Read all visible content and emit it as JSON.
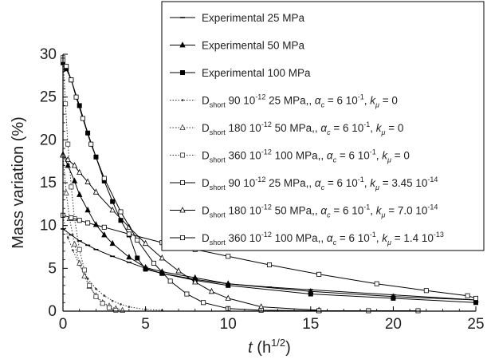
{
  "chart_data": {
    "type": "line",
    "xlabel": "t",
    "xlabel_unit": "(h",
    "xlabel_exp": "1/2",
    "xlabel_close": ")",
    "ylabel": "Mass variation (%)",
    "xlim": [
      0,
      25
    ],
    "ylim": [
      0,
      30
    ],
    "xticks": [
      0,
      5,
      10,
      15,
      20,
      25
    ],
    "yticks": [
      0,
      5,
      10,
      15,
      20,
      25,
      30
    ],
    "grid": false,
    "legend_position": "top-right",
    "series": [
      {
        "name": "Experimental 25 MPa",
        "legend": {
          "pre": "Experimental 25 MPa",
          "sub": "",
          "mid": "",
          "sup": "",
          "tail": ""
        },
        "marker": "dash",
        "line": "solid",
        "color": "#000000",
        "x": [
          0,
          0.5,
          1.0,
          1.5,
          2,
          3,
          4,
          5,
          6,
          8,
          10,
          12.5,
          15,
          20,
          25
        ],
        "y": [
          9.6,
          8.9,
          8.2,
          7.7,
          7.2,
          6.4,
          5.7,
          5.0,
          4.4,
          3.7,
          3.2,
          2.8,
          2.5,
          1.9,
          1.3
        ]
      },
      {
        "name": "Experimental 50 MPa",
        "legend": {
          "pre": "Experimental 50 MPa",
          "sub": "",
          "mid": "",
          "sup": "",
          "tail": ""
        },
        "marker": "triangle-filled",
        "line": "solid",
        "color": "#000000",
        "x": [
          0,
          0.3,
          0.7,
          1,
          1.5,
          2,
          2.5,
          3,
          4,
          5,
          6,
          8,
          10,
          15,
          20,
          25
        ],
        "y": [
          18.3,
          17.0,
          15.2,
          13.6,
          11.8,
          10.1,
          8.9,
          7.9,
          6.3,
          5.1,
          4.6,
          3.9,
          3.2,
          2.3,
          1.7,
          1.3
        ]
      },
      {
        "name": "Experimental 100 MPa",
        "legend": {
          "pre": "Experimental 100 MPa",
          "sub": "",
          "mid": "",
          "sup": "",
          "tail": ""
        },
        "marker": "square-filled",
        "line": "solid",
        "color": "#000000",
        "x": [
          0,
          0.2,
          0.5,
          1,
          1.5,
          2,
          2.5,
          3,
          3.5,
          4,
          4.5,
          5,
          6,
          8,
          10,
          15,
          20,
          25
        ],
        "y": [
          29.0,
          28.3,
          27.0,
          24.0,
          20.8,
          18.0,
          15.2,
          12.8,
          10.6,
          8.9,
          6.2,
          4.9,
          4.4,
          3.6,
          3.0,
          2.0,
          1.5,
          1.0
        ]
      },
      {
        "name": "D short 90 10-12 25 MPa, ac = 6 10-1, kμ = 0",
        "legend": {
          "pre": "D",
          "sub": "short",
          "mid": " 90 10",
          "sup": "-12",
          "tail": "  25 MPa,"
        },
        "marker": "dot",
        "line": "dotted",
        "color": "#333333",
        "x": [
          0,
          0.3,
          0.6,
          1,
          1.5,
          2,
          2.5,
          3,
          3.5,
          4,
          5,
          6
        ],
        "y": [
          11.0,
          8.6,
          7.1,
          5.4,
          3.8,
          2.6,
          1.8,
          1.2,
          0.8,
          0.5,
          0.2,
          0.1
        ]
      },
      {
        "name": "D short 180 10-12 50 MPa, ac = 6 10-1, kμ = 0",
        "legend": {
          "pre": "D",
          "sub": "short",
          "mid": " 180 10",
          "sup": "-12",
          "tail": "  50 MPa,"
        },
        "marker": "triangle-open",
        "line": "dotted",
        "color": "#333333",
        "x": [
          0,
          0.2,
          0.4,
          0.7,
          1,
          1.3,
          1.6,
          2,
          2.4,
          2.8,
          3.2,
          3.6
        ],
        "y": [
          18.2,
          13.8,
          10.8,
          7.8,
          5.6,
          4.1,
          2.9,
          1.8,
          1.0,
          0.6,
          0.3,
          0.1
        ]
      },
      {
        "name": "D short 360 10-12 100 MPa, ac = 6 10-1, kμ = 0",
        "legend": {
          "pre": "D",
          "sub": "short",
          "mid": " 360 10",
          "sup": "-12",
          "tail": "  100 MPa,"
        },
        "marker": "square-open",
        "line": "dotted",
        "color": "#333333",
        "x": [
          0,
          0.15,
          0.3,
          0.5,
          0.7,
          1,
          1.3,
          1.6,
          2,
          2.4,
          2.8,
          3.2
        ],
        "y": [
          29.6,
          24.2,
          19.5,
          14.5,
          10.8,
          7.2,
          4.8,
          3.0,
          1.7,
          0.9,
          0.4,
          0.1
        ]
      },
      {
        "name": "D short 90 10-12 25 MPa, ac = 6 10-1, kμ = 3.45 10-14",
        "legend": {
          "pre": "D",
          "sub": "short",
          "mid": " 90 10",
          "sup": "-12",
          "tail": "  25 MPa,"
        },
        "marker": "square-open",
        "line": "solid",
        "color": "#000000",
        "x": [
          0,
          0.5,
          1,
          1.5,
          2.5,
          4,
          6,
          8,
          10,
          12.5,
          15.5,
          19,
          22,
          24.5,
          25
        ],
        "y": [
          11.2,
          10.9,
          10.6,
          10.3,
          9.8,
          9.0,
          8.0,
          7.2,
          6.4,
          5.4,
          4.3,
          3.2,
          2.4,
          1.8,
          1.5
        ]
      },
      {
        "name": "D short 180 10-12 50 MPa, ac = 6 10-1, kμ = 7.0 10-14",
        "legend": {
          "pre": "D",
          "sub": "short",
          "mid": " 180 10",
          "sup": "-12",
          "tail": "  50 MPa,"
        },
        "marker": "triangle-open",
        "line": "solid",
        "color": "#000000",
        "x": [
          0,
          0.3,
          0.7,
          1,
          1.5,
          2,
          3,
          4,
          5,
          6,
          7,
          8,
          9,
          10,
          12,
          15.5
        ],
        "y": [
          18.2,
          17.7,
          17.0,
          16.2,
          15.1,
          13.9,
          11.8,
          9.8,
          7.9,
          6.2,
          4.7,
          3.4,
          2.3,
          1.5,
          0.5,
          0.1
        ]
      },
      {
        "name": "D short 360 10-12 100 MPa, ac = 6 10-1, kμ = 1.4 10-13",
        "legend": {
          "pre": "D",
          "sub": "short",
          "mid": " 360 10",
          "sup": "-12",
          "tail": "  100 MPa,"
        },
        "marker": "square-open",
        "line": "solid",
        "color": "#000000",
        "x": [
          0,
          0.2,
          0.5,
          0.8,
          1.2,
          1.7,
          2.5,
          3.5,
          4.5,
          5.5,
          6.5,
          7.5,
          8.5,
          10,
          12,
          15.5,
          18.5,
          21.5
        ],
        "y": [
          29.3,
          28.6,
          27.0,
          25.0,
          22.5,
          19.5,
          15.5,
          11.6,
          8.3,
          5.6,
          3.5,
          2.0,
          1.0,
          0.3,
          0.1,
          0.05,
          0.05,
          0.05
        ]
      }
    ],
    "legend_params": [
      {
        "alpha": ", ",
        "alpha_sym": "α",
        "alpha_sub": "c",
        "alpha_val": " = 6 10",
        "alpha_sup": "-1",
        "k_sep": ", ",
        "k_sym": "k",
        "k_sub": "μ",
        "k_val": " = 0",
        "k_sup": ""
      },
      {
        "alpha": ", ",
        "alpha_sym": "α",
        "alpha_sub": "c",
        "alpha_val": " = 6 10",
        "alpha_sup": "-1",
        "k_sep": ", ",
        "k_sym": "k",
        "k_sub": "μ",
        "k_val": " = 0",
        "k_sup": ""
      },
      {
        "alpha": ", ",
        "alpha_sym": "α",
        "alpha_sub": "c",
        "alpha_val": " = 6 10",
        "alpha_sup": "-1",
        "k_sep": ", ",
        "k_sym": "k",
        "k_sub": "μ",
        "k_val": " = 0",
        "k_sup": ""
      },
      {
        "alpha": ", ",
        "alpha_sym": "α",
        "alpha_sub": "c",
        "alpha_val": " = 6 10",
        "alpha_sup": "-1",
        "k_sep": ", ",
        "k_sym": "k",
        "k_sub": "μ",
        "k_val": " = 3.45 10",
        "k_sup": "-14"
      },
      {
        "alpha": ", ",
        "alpha_sym": "α",
        "alpha_sub": "c",
        "alpha_val": " = 6 10",
        "alpha_sup": "-1",
        "k_sep": ", ",
        "k_sym": "k",
        "k_sub": "μ",
        "k_val": " = 7.0 10",
        "k_sup": "-14"
      },
      {
        "alpha": ", ",
        "alpha_sym": "α",
        "alpha_sub": "c",
        "alpha_val": " = 6 10",
        "alpha_sup": "-1",
        "k_sep": ", ",
        "k_sym": "k",
        "k_sub": "μ",
        "k_val": " = 1.4 10",
        "k_sup": "-13"
      }
    ]
  }
}
